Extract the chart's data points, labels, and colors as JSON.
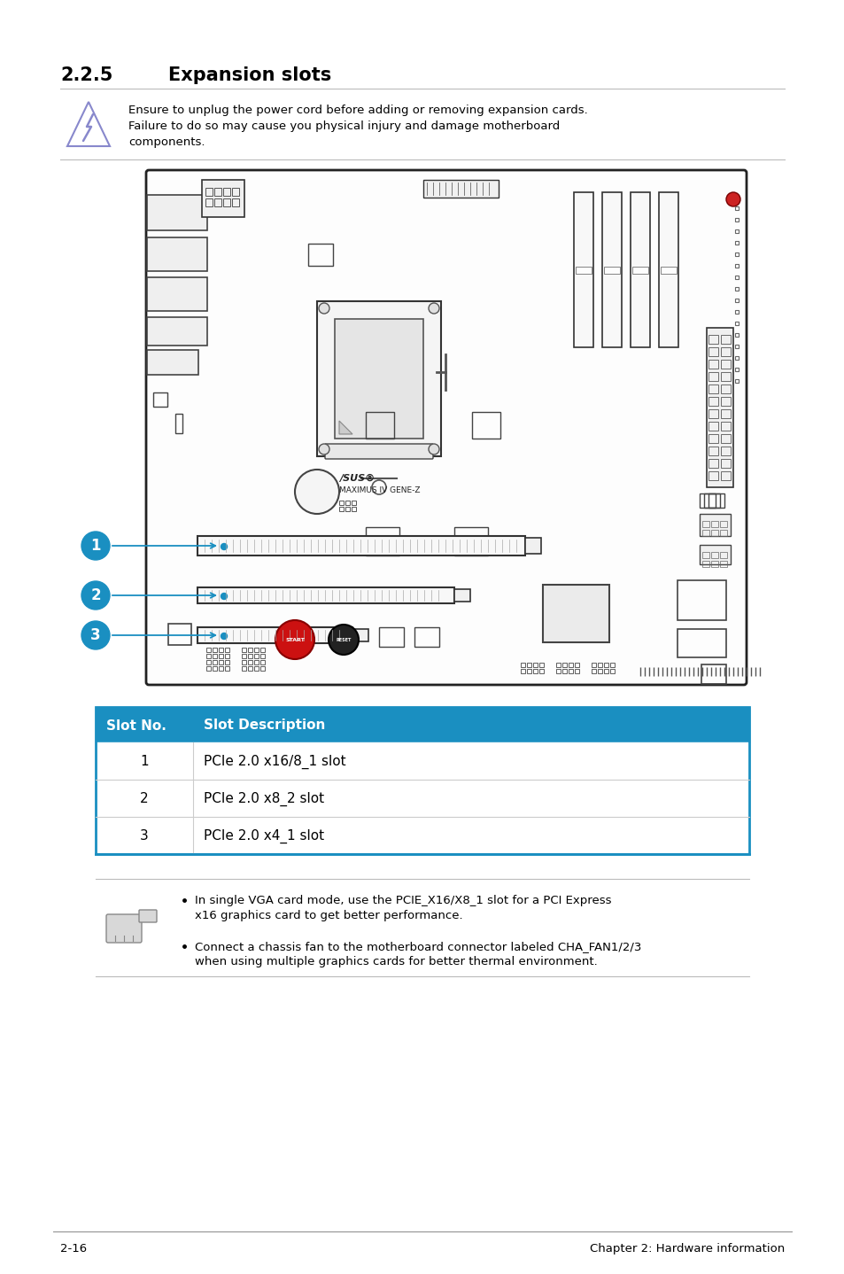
{
  "title_num": "2.2.5",
  "title_text": "Expansion slots",
  "warning_text_line1": "Ensure to unplug the power cord before adding or removing expansion cards.",
  "warning_text_line2": "Failure to do so may cause you physical injury and damage motherboard",
  "warning_text_line3": "components.",
  "table_header": [
    "Slot No.",
    "Slot Description"
  ],
  "table_header_bg": "#1a8fc1",
  "table_rows": [
    [
      "1",
      "PCIe 2.0 x16/8_1 slot"
    ],
    [
      "2",
      "PCIe 2.0 x8_2 slot"
    ],
    [
      "3",
      "PCIe 2.0 x4_1 slot"
    ]
  ],
  "note1_line1": "In single VGA card mode, use the PCIE_X16/X8_1 slot for a PCI Express",
  "note1_line2": "x16 graphics card to get better performance.",
  "note2_line1": "Connect a chassis fan to the motherboard connector labeled CHA_FAN1/2/3",
  "note2_line2": "when using multiple graphics cards for better thermal environment.",
  "footer_left": "2-16",
  "footer_right": "Chapter 2: Hardware information",
  "bg_color": "#ffffff",
  "callout_color": "#1a8fc1",
  "board_edge": "#333333",
  "table_border_color": "#1a8fc1",
  "table_divider": "#cccccc"
}
